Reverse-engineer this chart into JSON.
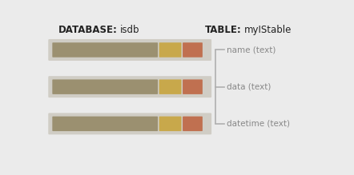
{
  "bg_color": "#ebebeb",
  "db_label_bold": "DATABASE:",
  "db_label_value": "isdb",
  "table_label_bold": "TABLE:",
  "table_label_value": "myIStable",
  "bar_bg_color": "#d0cdc5",
  "bar_main_color": "#9b9070",
  "bar_yellow_color": "#c8a84b",
  "bar_red_color": "#c07050",
  "field_labels": [
    "name (text)",
    "data (text)",
    "datetime (text)"
  ],
  "bracket_color": "#b0b0b0",
  "field_text_color": "#888888",
  "title_color": "#222222",
  "title_bold_fontsize": 8.5,
  "title_value_fontsize": 8.5,
  "field_fontsize": 7.5
}
